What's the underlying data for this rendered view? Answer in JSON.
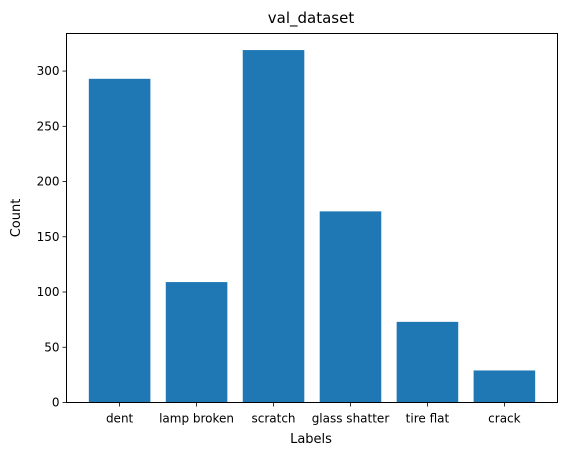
{
  "chart_data": {
    "type": "bar",
    "title": "val_dataset",
    "xlabel": "Labels",
    "ylabel": "Count",
    "categories": [
      "dent",
      "lamp broken",
      "scratch",
      "glass shatter",
      "tire flat",
      "crack"
    ],
    "values": [
      293,
      109,
      319,
      173,
      73,
      29
    ],
    "ylim": [
      0,
      334
    ],
    "yticks": [
      0,
      50,
      100,
      150,
      200,
      250,
      300
    ],
    "grid": false,
    "bar_color": "#1f77b4"
  }
}
